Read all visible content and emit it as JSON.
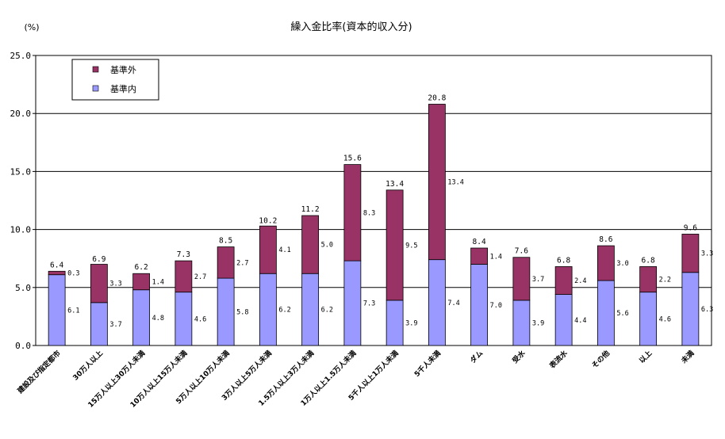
{
  "chart_data": {
    "type": "bar",
    "stacked": true,
    "title": "繰入金比率(資本的収入分)",
    "ylabel": "(%)",
    "ylim": [
      0,
      25
    ],
    "yticks": [
      "0.0",
      "5.0",
      "10.0",
      "15.0",
      "20.0",
      "25.0"
    ],
    "grid": true,
    "legend_position": "top-left",
    "categories": [
      "建設及び指定都市",
      "30万人以上",
      "15万人以上30万人未満",
      "10万人以上15万人未満",
      "5万人以上10万人未満",
      "3万人以上5万人未満",
      "1.5万人以上3万人未満",
      "1万人以上1.5万人未満",
      "5千人以上1万人未満",
      "5千人未満",
      "ダム",
      "受水",
      "表流水",
      "その他",
      "以上",
      "未満"
    ],
    "series": [
      {
        "name": "基準外",
        "color": "#993366",
        "values": [
          0.3,
          3.3,
          1.4,
          2.7,
          2.7,
          4.1,
          5.0,
          8.3,
          9.5,
          13.4,
          1.4,
          3.7,
          2.4,
          3.0,
          2.2,
          3.3
        ]
      },
      {
        "name": "基準内",
        "color": "#9999ff",
        "values": [
          6.1,
          3.7,
          4.8,
          4.6,
          5.8,
          6.2,
          6.2,
          7.3,
          3.9,
          7.4,
          7.0,
          3.9,
          4.4,
          5.6,
          4.6,
          6.3
        ]
      }
    ],
    "totals": [
      6.4,
      6.9,
      6.2,
      7.3,
      8.5,
      10.2,
      11.2,
      15.6,
      13.4,
      20.8,
      8.4,
      7.6,
      6.8,
      8.6,
      6.8,
      9.6
    ],
    "legend_order": [
      "基準外",
      "基準内"
    ]
  }
}
